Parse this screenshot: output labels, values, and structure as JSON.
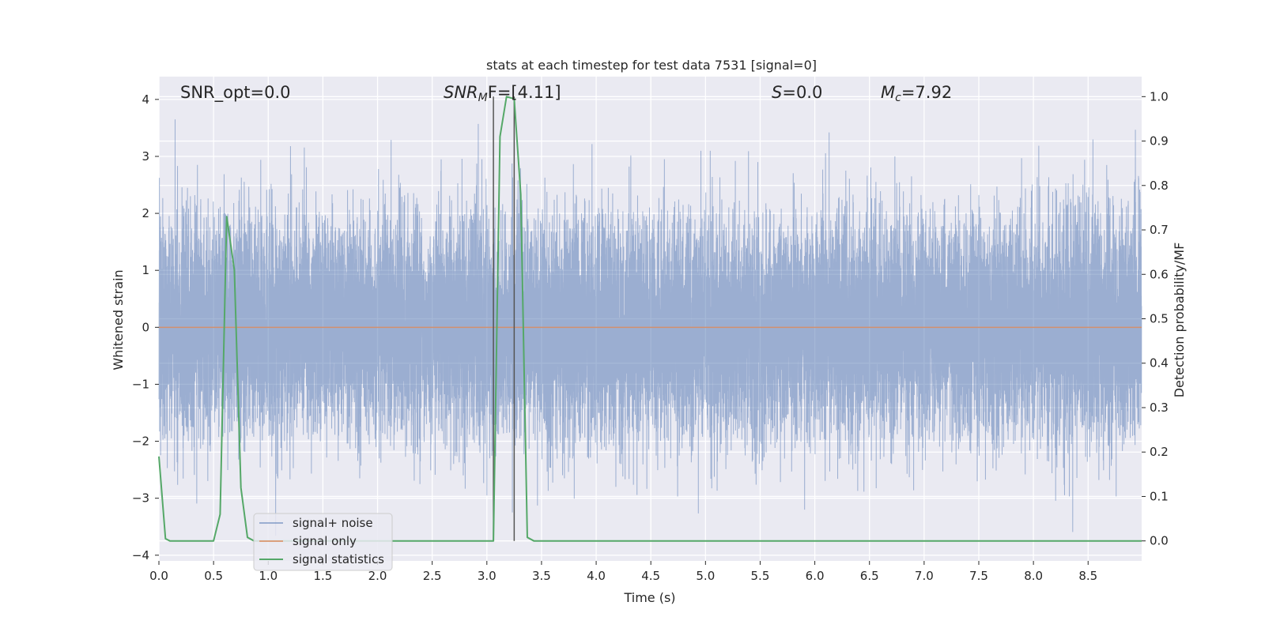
{
  "chart_data": {
    "type": "line",
    "title": "stats at each timestep for test data 7531 [signal=0]",
    "xlabel": "Time (s)",
    "ylabel_left": "Whitened strain",
    "ylabel_right": "Detection probability/MF",
    "xlim": [
      0.0,
      8.99
    ],
    "ylim_left": [
      -4.1,
      4.4
    ],
    "ylim_right": [
      -0.045,
      1.045
    ],
    "x_ticks": [
      "0.0",
      "0.5",
      "1.0",
      "1.5",
      "2.0",
      "2.5",
      "3.0",
      "3.5",
      "4.0",
      "4.5",
      "5.0",
      "5.5",
      "6.0",
      "6.5",
      "7.0",
      "7.5",
      "8.0",
      "8.5"
    ],
    "y_ticks_left": [
      "−4",
      "−3",
      "−2",
      "−1",
      "0",
      "1",
      "2",
      "3",
      "4"
    ],
    "y_ticks_right": [
      "0.0",
      "0.1",
      "0.2",
      "0.3",
      "0.4",
      "0.5",
      "0.6",
      "0.7",
      "0.8",
      "0.9",
      "1.0"
    ],
    "annotations": {
      "snr_opt": "SNR_opt=0.0",
      "snr_mf_name": "SNR",
      "snr_mf_sub": "M",
      "snr_mf_rest": "F=[4.11]",
      "s_name": "S",
      "s_value": "=0.0",
      "mc_name": "M",
      "mc_sub": "c",
      "mc_value": "=7.92"
    },
    "series": [
      {
        "name": "signal+ noise",
        "color": "#4c72b0",
        "axis": "left",
        "description": "dense whitened noise, amplitude mostly within ±2.5, peaks to about ±3.8",
        "sample_rate": 2048,
        "noise_std": 0.95,
        "duration": 8.99
      },
      {
        "name": "signal only",
        "color": "#dd8452",
        "axis": "left",
        "x": [
          0.0,
          8.99
        ],
        "y": [
          0.0,
          0.0
        ]
      },
      {
        "name": "signal statistics",
        "color": "#55a868",
        "axis": "right",
        "x": [
          0.0,
          0.06,
          0.1,
          0.2,
          0.5,
          0.56,
          0.62,
          0.69,
          0.75,
          0.81,
          0.87,
          1.0,
          3.06,
          3.12,
          3.18,
          3.25,
          3.31,
          3.37,
          3.43,
          8.99
        ],
        "y": [
          0.19,
          0.005,
          0.0,
          0.0,
          0.0,
          0.06,
          0.73,
          0.61,
          0.12,
          0.008,
          0.0,
          0.0,
          0.0,
          0.91,
          1.0,
          0.995,
          0.78,
          0.008,
          0.0,
          0.0
        ]
      }
    ],
    "vlines": [
      3.06,
      3.25
    ],
    "vline_color": "#555555",
    "legend": {
      "position": "lower-left",
      "entries": [
        "signal+ noise",
        "signal only",
        "signal statistics"
      ]
    },
    "colors": {
      "plot_background": "#eaeaf2",
      "grid": "#ffffff"
    }
  }
}
